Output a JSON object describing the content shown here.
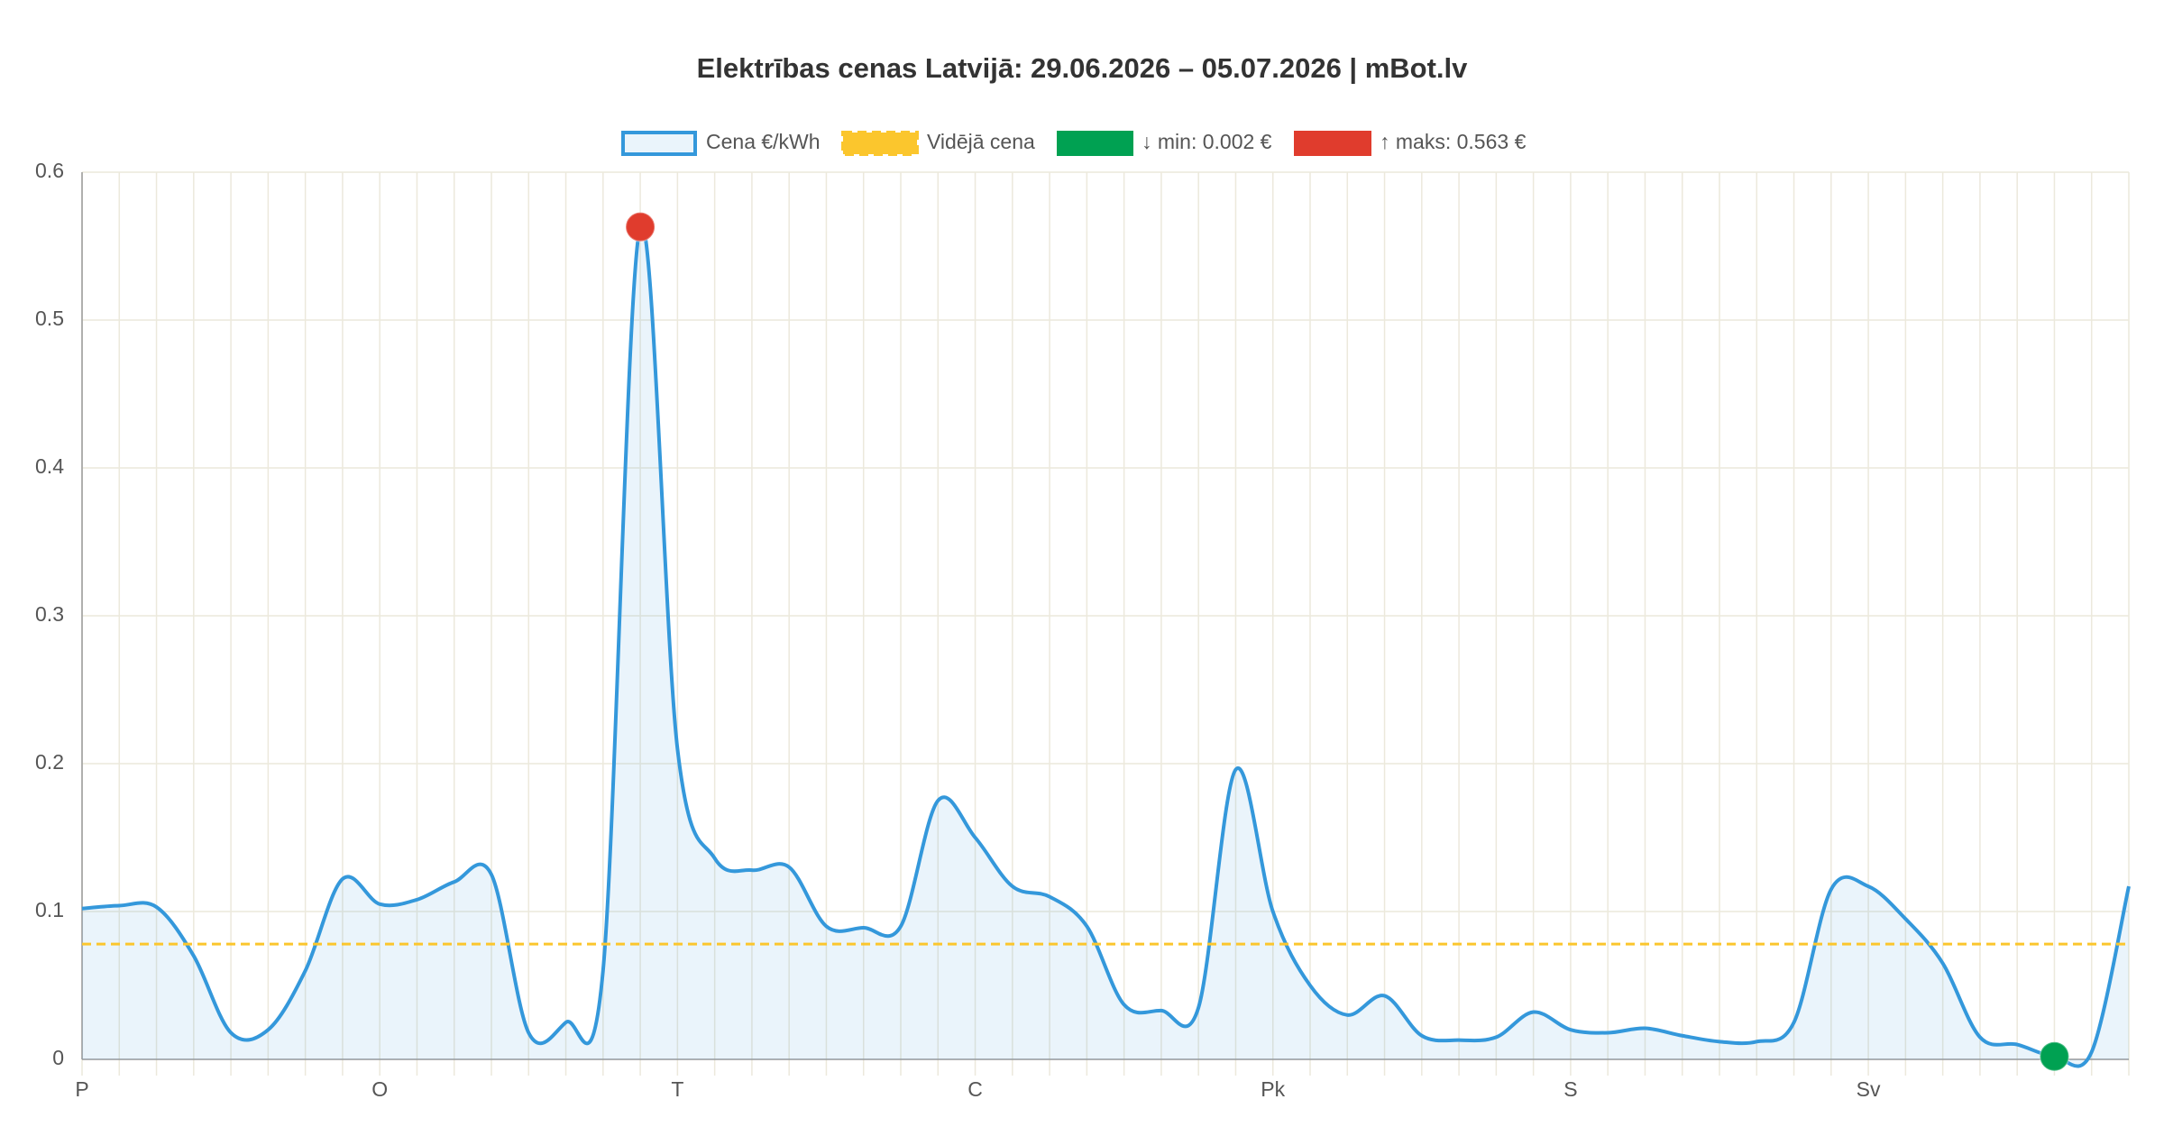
{
  "chart_data": {
    "type": "line",
    "title": "Elektrības cenas Latvijā: 29.06.2026 – 05.07.2026 | mBot.lv",
    "categories": [
      "P",
      null,
      null,
      null,
      null,
      null,
      null,
      null,
      "O",
      null,
      null,
      null,
      null,
      null,
      null,
      null,
      "T",
      null,
      null,
      null,
      null,
      null,
      null,
      null,
      "C",
      null,
      null,
      null,
      null,
      null,
      null,
      null,
      "Pk",
      null,
      null,
      null,
      null,
      null,
      null,
      null,
      "S",
      null,
      null,
      null,
      null,
      null,
      null,
      null,
      "Sv",
      null,
      null,
      null,
      null,
      null,
      null,
      null
    ],
    "series": [
      {
        "name": "Cena €/kWh",
        "color": "#3498db",
        "values": [
          0.102,
          0.104,
          0.103,
          0.07,
          0.018,
          0.02,
          0.06,
          0.122,
          0.105,
          0.108,
          0.12,
          0.125,
          0.018,
          0.025,
          0.06,
          0.563,
          0.21,
          0.136,
          0.128,
          0.13,
          0.09,
          0.089,
          0.09,
          0.175,
          0.15,
          0.117,
          0.11,
          0.09,
          0.037,
          0.033,
          0.035,
          0.196,
          0.1,
          0.05,
          0.03,
          0.043,
          0.016,
          0.013,
          0.015,
          0.032,
          0.02,
          0.018,
          0.021,
          0.016,
          0.012,
          0.012,
          0.025,
          0.115,
          0.117,
          0.095,
          0.065,
          0.015,
          0.01,
          0.002,
          0.005,
          0.117
        ]
      }
    ],
    "average": {
      "name": "Vidējā cena",
      "value": 0.078,
      "color": "#fbc62d"
    },
    "min": {
      "label": "↓ min: 0.002 €",
      "index": 53,
      "color": "#00a152"
    },
    "max": {
      "label": "↑ maks: 0.563 €",
      "index": 15,
      "color": "#e03c2d"
    },
    "ylim": [
      0,
      0.6
    ],
    "yticks": [
      0,
      0.1,
      0.2,
      0.3,
      0.4,
      0.5,
      0.6
    ],
    "grid": true
  }
}
